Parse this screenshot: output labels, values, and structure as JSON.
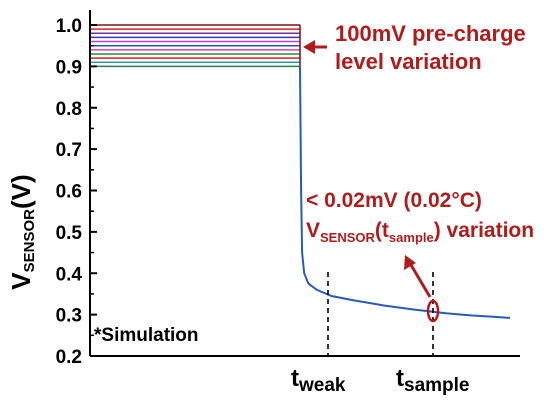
{
  "chart_data": {
    "type": "line",
    "title": "",
    "ylabel": {
      "main": "V",
      "sub": "SENSOR",
      "unit": "(V)"
    },
    "ylim": [
      0.2,
      1.05
    ],
    "yticks": [
      "0.2",
      "0.3",
      "0.4",
      "0.5",
      "0.6",
      "0.7",
      "0.8",
      "0.9",
      "1.0"
    ],
    "x_markers": [
      {
        "main": "t",
        "sub": "weak",
        "position": "t_weak"
      },
      {
        "main": "t",
        "sub": "sample",
        "position": "t_sample"
      }
    ],
    "precharge_levels": [
      {
        "v": 1.0,
        "color": "#7a1010"
      },
      {
        "v": 0.99,
        "color": "#e0201a"
      },
      {
        "v": 0.98,
        "color": "#7030a0"
      },
      {
        "v": 0.97,
        "color": "#3a30c0"
      },
      {
        "v": 0.96,
        "color": "#c040c0"
      },
      {
        "v": 0.95,
        "color": "#2050d0"
      },
      {
        "v": 0.94,
        "color": "#d040d0"
      },
      {
        "v": 0.93,
        "color": "#2a8a2a"
      },
      {
        "v": 0.92,
        "color": "#d0202a"
      },
      {
        "v": 0.91,
        "color": "#20a0a0"
      },
      {
        "v": 0.9,
        "color": "#208040"
      }
    ],
    "discharge_curve": {
      "color": "#2a5ab8",
      "points": [
        [
          0.0,
          0.9
        ],
        [
          0.005,
          0.6
        ],
        [
          0.01,
          0.45
        ],
        [
          0.02,
          0.4
        ],
        [
          0.04,
          0.375
        ],
        [
          0.08,
          0.36
        ],
        [
          0.15,
          0.345
        ],
        [
          0.25,
          0.335
        ],
        [
          0.4,
          0.322
        ],
        [
          0.55,
          0.312
        ],
        [
          0.7,
          0.303
        ],
        [
          0.82,
          0.298
        ],
        [
          0.92,
          0.295
        ],
        [
          1.0,
          0.292
        ]
      ]
    },
    "annotations": {
      "precharge": {
        "lines": [
          "100mV pre-charge",
          "level variation"
        ]
      },
      "variation": {
        "line1": "< 0.02mV (0.02°C)",
        "line2_main": "V",
        "line2_sub": "SENSOR",
        "line2_mid": "(t",
        "line2_sub2": "sample",
        "line2_end": ") variation"
      },
      "simulation": "*Simulation"
    },
    "colors": {
      "accent": "#b01c1c",
      "axis": "#000000",
      "curve": "#2a5ab8"
    }
  }
}
